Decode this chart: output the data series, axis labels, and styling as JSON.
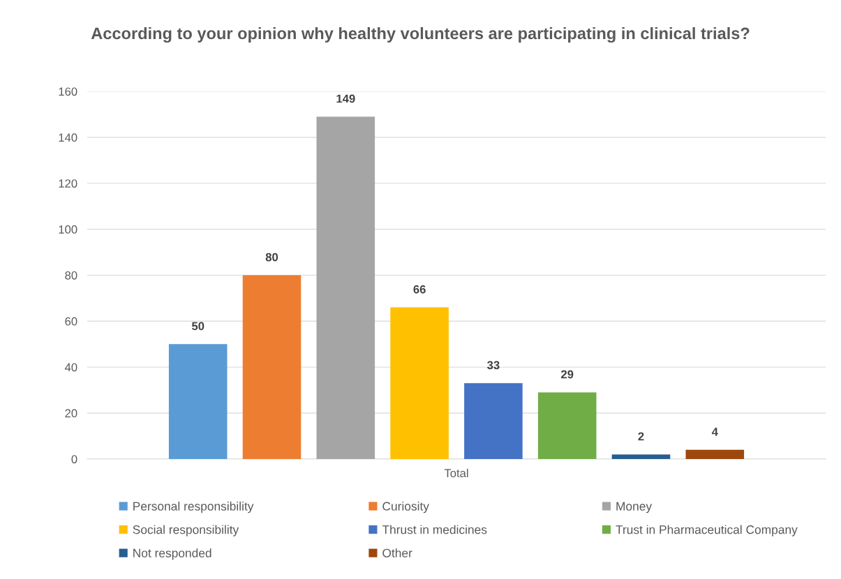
{
  "chart_data": {
    "type": "bar",
    "title": "According to your opinion why healthy volunteers are participating in clinical trials?",
    "categories": [
      "Total"
    ],
    "series": [
      {
        "name": "Personal responsibility",
        "color": "#5b9bd5",
        "values": [
          50
        ]
      },
      {
        "name": "Curiosity",
        "color": "#ed7d31",
        "values": [
          80
        ]
      },
      {
        "name": "Money",
        "color": "#a5a5a5",
        "values": [
          149
        ]
      },
      {
        "name": "Social responsibility",
        "color": "#ffc000",
        "values": [
          66
        ]
      },
      {
        "name": "Thrust in medicines",
        "color": "#4472c4",
        "values": [
          33
        ]
      },
      {
        "name": "Trust in Pharmaceutical Company",
        "color": "#70ad47",
        "values": [
          29
        ]
      },
      {
        "name": "Not responded",
        "color": "#255e91",
        "values": [
          2
        ]
      },
      {
        "name": "Other",
        "color": "#9e480e",
        "values": [
          4
        ]
      }
    ],
    "ylim": [
      0,
      160
    ],
    "yticks": [
      0,
      20,
      40,
      60,
      80,
      100,
      120,
      140,
      160
    ],
    "grid": "y",
    "legend": "bottom",
    "data_labels": true
  }
}
